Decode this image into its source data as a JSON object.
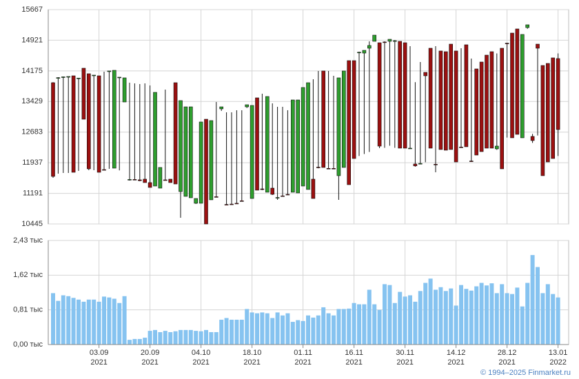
{
  "chart_data": [
    {
      "type": "candlestick",
      "categories": [
        null,
        null,
        null,
        null,
        null,
        null,
        null,
        null,
        null,
        "03.09\n2021",
        null,
        null,
        null,
        null,
        null,
        null,
        null,
        null,
        null,
        "20.09\n2021",
        null,
        null,
        null,
        null,
        null,
        null,
        null,
        null,
        null,
        "04.10\n2021",
        null,
        null,
        null,
        null,
        null,
        null,
        null,
        null,
        null,
        "18.10\n2021",
        null,
        null,
        null,
        null,
        null,
        null,
        null,
        null,
        null,
        "01.11\n2021",
        null,
        null,
        null,
        null,
        null,
        null,
        null,
        null,
        null,
        "16.11\n2021",
        null,
        null,
        null,
        null,
        null,
        null,
        null,
        null,
        null,
        "30.11\n2021",
        null,
        null,
        null,
        null,
        null,
        null,
        null,
        null,
        null,
        "14.12\n2021",
        null,
        null,
        null,
        null,
        null,
        null,
        null,
        null,
        null,
        "28.12\n2021",
        null,
        null,
        null,
        null,
        null,
        null,
        null,
        null,
        null,
        "13.01\n2022"
      ],
      "open": [
        13887,
        14000,
        14020,
        14030,
        14055,
        13990,
        14240,
        14106,
        14060,
        14055,
        11770,
        14160,
        11805,
        14010,
        13417,
        11520,
        11530,
        11520,
        11537,
        11453,
        11369,
        11318,
        11520,
        11537,
        13887,
        11234,
        11117,
        11083,
        10949,
        10949,
        12997,
        11033,
        11110,
        13249,
        10920,
        10930,
        10950,
        11010,
        13299,
        11066,
        13518,
        11300,
        11218,
        11318,
        11083,
        11130,
        11167,
        11218,
        11201,
        11369,
        11285,
        11537,
        11830,
        14173,
        11800,
        11800,
        11621,
        11822,
        14425,
        14425,
        14620,
        14609,
        14727,
        14895,
        14861,
        14880,
        14895,
        14900,
        14895,
        14861,
        12290,
        11906,
        11910,
        14139,
        14727,
        11900,
        14660,
        14643,
        14827,
        14660,
        12320,
        14811,
        11980,
        14223,
        14391,
        14559,
        14643,
        12275,
        14727,
        14850,
        15096,
        15197,
        12544,
        15230,
        12578,
        14827,
        14307,
        14357,
        14492,
        14475
      ],
      "high": [
        13900,
        14022,
        14038,
        14038,
        14055,
        14000,
        14240,
        14106,
        14072,
        14055,
        14156,
        14173,
        14189,
        14022,
        14005,
        13887,
        13870,
        13854,
        13870,
        13820,
        13652,
        11822,
        13719,
        11537,
        13887,
        13451,
        13299,
        13299,
        11066,
        12930,
        12997,
        12964,
        13417,
        13299,
        13165,
        13165,
        13216,
        13216,
        13350,
        13333,
        13518,
        13619,
        13551,
        13384,
        13299,
        13299,
        13216,
        13467,
        13467,
        13770,
        13887,
        13971,
        14173,
        14173,
        14173,
        14055,
        14005,
        14173,
        14425,
        14425,
        14643,
        14676,
        14895,
        15046,
        14861,
        14895,
        14945,
        14928,
        14895,
        14861,
        14777,
        13900,
        14391,
        14139,
        14727,
        14777,
        14660,
        14643,
        14827,
        14660,
        14727,
        14811,
        14475,
        14223,
        14391,
        14559,
        14643,
        14600,
        14727,
        14861,
        15096,
        15197,
        15063,
        15298,
        12640,
        14827,
        14307,
        14357,
        14492,
        14600
      ],
      "low": [
        11570,
        11671,
        11688,
        11688,
        11704,
        11738,
        12997,
        11755,
        11755,
        11704,
        11755,
        11788,
        11805,
        11750,
        13417,
        11503,
        11520,
        11486,
        11453,
        11335,
        11369,
        11318,
        11503,
        11453,
        11419,
        10596,
        11117,
        11083,
        10932,
        10949,
        10445,
        11033,
        11100,
        13200,
        10898,
        10915,
        10932,
        10999,
        13270,
        11066,
        11268,
        11268,
        11218,
        11150,
        11033,
        11117,
        11150,
        11218,
        11201,
        11369,
        11285,
        11066,
        11800,
        11822,
        11788,
        11788,
        11033,
        11822,
        11402,
        12040,
        12100,
        12150,
        12200,
        14895,
        12292,
        12300,
        12350,
        12300,
        12292,
        12292,
        12275,
        11840,
        11900,
        11950,
        12292,
        11704,
        12259,
        12242,
        12259,
        11956,
        12300,
        12326,
        11956,
        12124,
        12208,
        12292,
        12292,
        12250,
        11788,
        12550,
        12544,
        12628,
        12544,
        15200,
        12420,
        12600,
        11621,
        11956,
        12040,
        12100
      ],
      "close": [
        11604,
        14010,
        14030,
        14038,
        11704,
        14000,
        12997,
        11788,
        14072,
        11704,
        11760,
        14173,
        14189,
        14022,
        14005,
        11530,
        11520,
        11500,
        11453,
        11335,
        13652,
        11822,
        11510,
        11453,
        11419,
        13451,
        13299,
        13299,
        11066,
        12930,
        10445,
        12964,
        11100,
        13299,
        10910,
        10920,
        10940,
        11000,
        13350,
        13333,
        11268,
        11290,
        13551,
        11167,
        11090,
        11117,
        11160,
        13467,
        13467,
        13770,
        13887,
        11066,
        11822,
        11822,
        11790,
        11790,
        14005,
        14173,
        11402,
        12040,
        14630,
        14676,
        14794,
        15046,
        12342,
        14870,
        14945,
        14910,
        12292,
        12292,
        12292,
        11860,
        11920,
        14055,
        12292,
        11890,
        12259,
        12242,
        12259,
        11956,
        12310,
        12326,
        11970,
        12124,
        12208,
        12292,
        12292,
        12342,
        11788,
        14840,
        12544,
        12628,
        15063,
        15298,
        12477,
        14727,
        11621,
        11956,
        12040,
        12745
      ],
      "up_color": "#2e9e2e",
      "down_color": "#9b1010",
      "ylim": [
        10445,
        15667
      ],
      "yticks": [
        10445,
        11191,
        11937,
        12683,
        13429,
        14175,
        14921,
        15667
      ],
      "grid": true
    },
    {
      "type": "bar",
      "values": [
        1.2,
        1.02,
        1.15,
        1.13,
        1.09,
        1.05,
        1.0,
        1.05,
        1.05,
        1.0,
        1.12,
        1.1,
        1.07,
        0.97,
        1.13,
        0.11,
        0.13,
        0.13,
        0.16,
        0.32,
        0.34,
        0.29,
        0.32,
        0.29,
        0.31,
        0.34,
        0.34,
        0.34,
        0.32,
        0.31,
        0.34,
        0.29,
        0.29,
        0.58,
        0.62,
        0.58,
        0.58,
        0.58,
        0.83,
        0.75,
        0.73,
        0.75,
        0.73,
        0.62,
        0.75,
        0.68,
        0.73,
        0.53,
        0.57,
        0.55,
        0.68,
        0.63,
        0.68,
        0.87,
        0.73,
        0.68,
        0.83,
        0.83,
        0.84,
        0.97,
        0.94,
        0.94,
        1.28,
        0.94,
        0.81,
        1.41,
        1.39,
        0.97,
        1.23,
        1.12,
        1.15,
        1.0,
        1.25,
        1.44,
        1.54,
        1.28,
        1.34,
        1.25,
        1.31,
        0.91,
        1.39,
        1.3,
        1.26,
        1.36,
        1.44,
        1.38,
        1.43,
        1.2,
        1.41,
        1.2,
        1.18,
        1.33,
        0.89,
        1.44,
        2.09,
        1.81,
        1.2,
        1.41,
        1.18,
        1.1
      ],
      "color": "#86c3f0",
      "ylim": [
        0,
        2.43
      ],
      "yticks": [
        {
          "value": 0,
          "label": "0,00 тыс"
        },
        {
          "value": 0.81,
          "label": "0,81 тыс"
        },
        {
          "value": 1.62,
          "label": "1,62 тыс"
        },
        {
          "value": 2.43,
          "label": "2,43 тыс"
        }
      ],
      "grid": true
    }
  ],
  "footer": "© 1994–2025 Finmarket.ru"
}
